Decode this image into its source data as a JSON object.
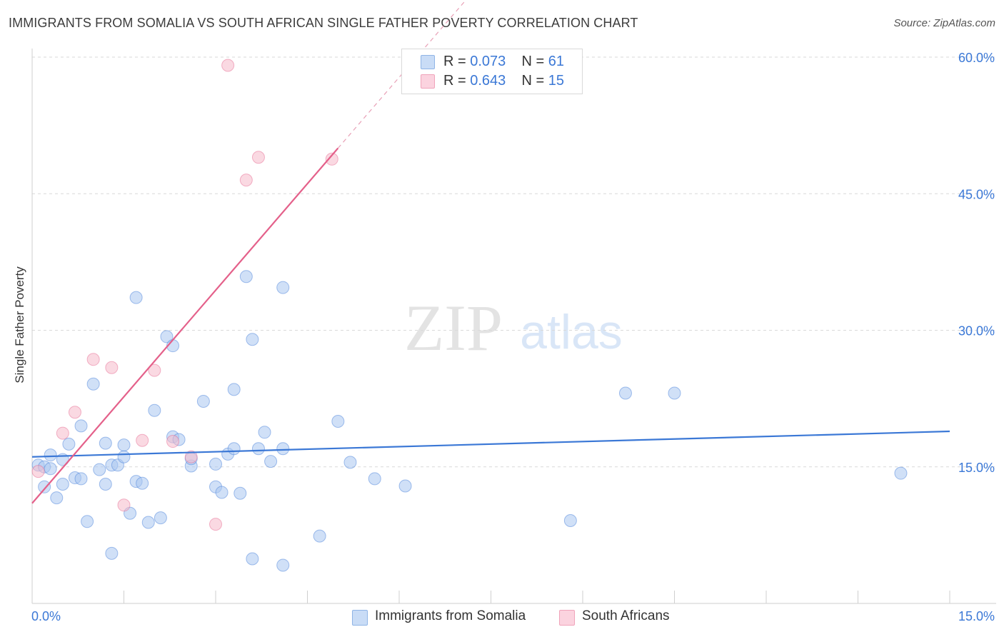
{
  "title": "IMMIGRANTS FROM SOMALIA VS SOUTH AFRICAN SINGLE FATHER POVERTY CORRELATION CHART",
  "source": "Source: ZipAtlas.com",
  "watermark": {
    "zip": "ZIP",
    "atlas": "atlas"
  },
  "legend": {
    "rows": [
      {
        "r_label": "R = ",
        "r_value": "0.073",
        "n_label": "N = ",
        "n_value": "61",
        "color": "#a9c7f0"
      },
      {
        "r_label": "R = ",
        "r_value": "0.643",
        "n_label": "N = ",
        "n_value": "15",
        "color": "#f6b9cb"
      }
    ]
  },
  "bottom_legend": [
    {
      "label": "Immigrants from Somalia",
      "color": "#a9c7f0"
    },
    {
      "label": "South Africans",
      "color": "#f6b9cb"
    }
  ],
  "chart_data": {
    "type": "scatter",
    "title": "IMMIGRANTS FROM SOMALIA VS SOUTH AFRICAN SINGLE FATHER POVERTY CORRELATION CHART",
    "xlabel": "",
    "ylabel": "Single Father Poverty",
    "xlim": [
      0,
      15
    ],
    "ylim": [
      0,
      60
    ],
    "x_tick_labels": [
      "0.0%",
      "15.0%"
    ],
    "y_tick_labels": [
      "15.0%",
      "30.0%",
      "45.0%",
      "60.0%"
    ],
    "y_ticks": [
      15,
      30,
      45,
      60
    ],
    "grid": true,
    "legend_position": "top-center",
    "series": [
      {
        "name": "Immigrants from Somalia",
        "color": "#3b78d6",
        "fill": "#a9c7f0",
        "r": 0.073,
        "n": 61,
        "trend": {
          "x": [
            0,
            15
          ],
          "y": [
            16.1,
            18.9
          ]
        },
        "points": [
          [
            0.1,
            15.2
          ],
          [
            0.2,
            15.0
          ],
          [
            0.2,
            12.8
          ],
          [
            0.3,
            14.8
          ],
          [
            0.3,
            16.3
          ],
          [
            0.4,
            11.6
          ],
          [
            0.5,
            15.8
          ],
          [
            0.5,
            13.1
          ],
          [
            0.6,
            17.5
          ],
          [
            0.7,
            13.8
          ],
          [
            0.8,
            19.5
          ],
          [
            0.8,
            13.7
          ],
          [
            0.9,
            9.0
          ],
          [
            1.0,
            24.1
          ],
          [
            1.1,
            14.7
          ],
          [
            1.2,
            17.6
          ],
          [
            1.2,
            13.1
          ],
          [
            1.3,
            15.2
          ],
          [
            1.3,
            5.5
          ],
          [
            1.4,
            15.2
          ],
          [
            1.5,
            17.4
          ],
          [
            1.5,
            16.1
          ],
          [
            1.6,
            9.9
          ],
          [
            1.7,
            33.6
          ],
          [
            1.7,
            13.4
          ],
          [
            1.8,
            13.2
          ],
          [
            1.9,
            8.9
          ],
          [
            2.0,
            21.2
          ],
          [
            2.1,
            9.4
          ],
          [
            2.2,
            29.3
          ],
          [
            2.3,
            28.3
          ],
          [
            2.3,
            18.3
          ],
          [
            2.4,
            18.0
          ],
          [
            2.6,
            15.1
          ],
          [
            2.6,
            15.9
          ],
          [
            2.8,
            22.2
          ],
          [
            3.0,
            15.3
          ],
          [
            3.0,
            12.8
          ],
          [
            3.1,
            12.2
          ],
          [
            3.2,
            16.4
          ],
          [
            3.3,
            23.5
          ],
          [
            3.3,
            17.0
          ],
          [
            3.4,
            12.1
          ],
          [
            3.5,
            35.9
          ],
          [
            3.6,
            4.9
          ],
          [
            3.6,
            29.0
          ],
          [
            3.7,
            17.0
          ],
          [
            3.8,
            18.8
          ],
          [
            3.9,
            15.6
          ],
          [
            4.1,
            34.7
          ],
          [
            4.1,
            17.0
          ],
          [
            4.1,
            4.2
          ],
          [
            4.7,
            7.4
          ],
          [
            5.0,
            20.0
          ],
          [
            5.2,
            15.5
          ],
          [
            5.6,
            13.7
          ],
          [
            6.1,
            12.9
          ],
          [
            8.8,
            9.1
          ],
          [
            9.7,
            23.1
          ],
          [
            10.5,
            23.1
          ],
          [
            14.2,
            14.3
          ]
        ]
      },
      {
        "name": "South Africans",
        "color": "#e4608a",
        "fill": "#f6b9cb",
        "r": 0.643,
        "n": 15,
        "trend": {
          "x": [
            0,
            5.0
          ],
          "y": [
            11.0,
            50.0
          ]
        },
        "trend_dashed": {
          "x": [
            5.0,
            7.3
          ],
          "y": [
            50.0,
            67.9
          ]
        },
        "points": [
          [
            0.1,
            14.5
          ],
          [
            0.5,
            18.7
          ],
          [
            0.7,
            21.0
          ],
          [
            1.0,
            26.8
          ],
          [
            1.3,
            25.9
          ],
          [
            1.5,
            10.8
          ],
          [
            1.8,
            17.9
          ],
          [
            2.0,
            25.6
          ],
          [
            2.3,
            17.8
          ],
          [
            2.6,
            16.1
          ],
          [
            3.0,
            8.7
          ],
          [
            3.2,
            59.1
          ],
          [
            3.5,
            46.5
          ],
          [
            3.7,
            49.0
          ],
          [
            4.9,
            48.8
          ]
        ]
      }
    ]
  }
}
